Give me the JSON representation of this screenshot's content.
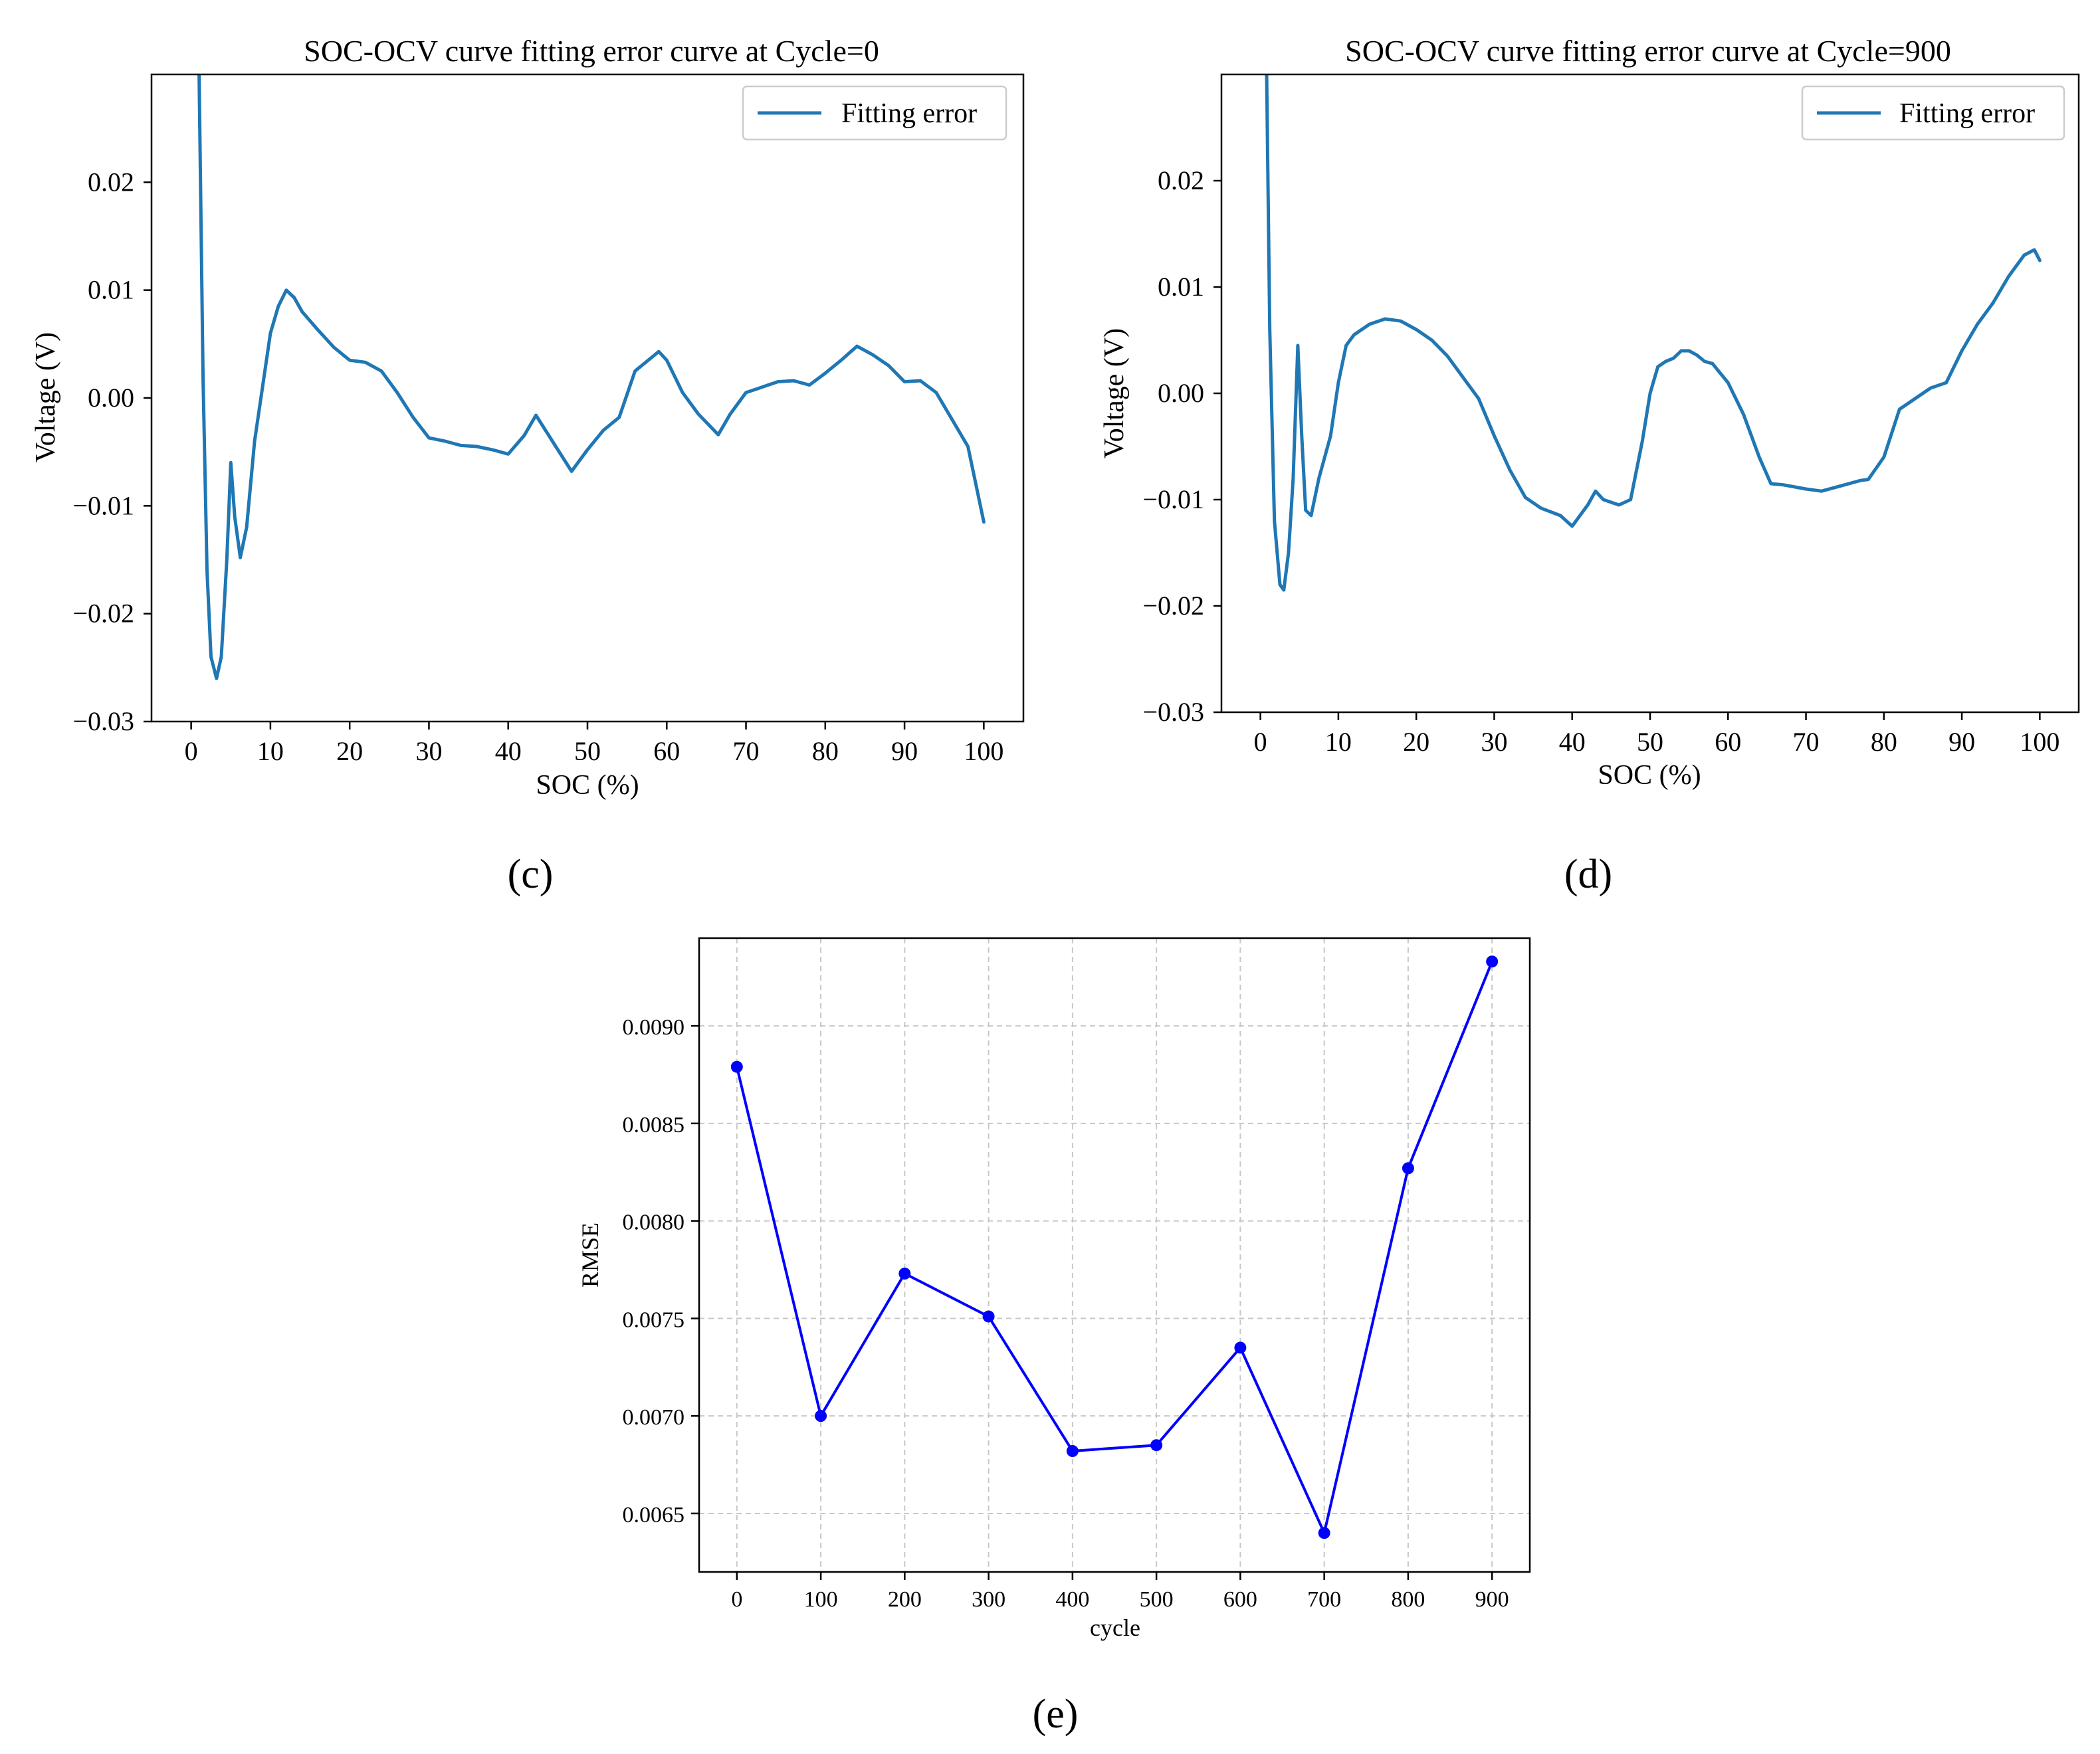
{
  "chart_data": [
    {
      "id": "c",
      "panel_label": "(c)",
      "type": "line",
      "title": "SOC-OCV curve fitting error curve at Cycle=0",
      "xlabel": "SOC (%)",
      "ylabel": "Voltage (V)",
      "xlim": [
        -5,
        105
      ],
      "ylim": [
        -0.03,
        0.03
      ],
      "xticks": [
        "0",
        "10",
        "20",
        "30",
        "40",
        "50",
        "60",
        "70",
        "80",
        "90",
        "100"
      ],
      "yticks": [
        "−0.03",
        "−0.02",
        "−0.01",
        "0.00",
        "0.01",
        "0.02"
      ],
      "legend": "top-right",
      "color": "#1f77b4",
      "series": [
        {
          "name": "Fitting error",
          "x": [
            1,
            1.5,
            2,
            2.5,
            3.2,
            3.8,
            4.5,
            5.0,
            5.5,
            6.2,
            7,
            8,
            9,
            10,
            11,
            12,
            13,
            14,
            16,
            18,
            20,
            22,
            24,
            26,
            28,
            30,
            32,
            34,
            36,
            38,
            40,
            42,
            43.5,
            46,
            48,
            50,
            52,
            54,
            56,
            58,
            59,
            60,
            62,
            64,
            66.5,
            68,
            70,
            72,
            74,
            76,
            78,
            80,
            82,
            84,
            86,
            88,
            90,
            92,
            94,
            96,
            98,
            100
          ],
          "y": [
            0.03,
            0.002,
            -0.016,
            -0.024,
            -0.026,
            -0.024,
            -0.015,
            -0.006,
            -0.011,
            -0.0148,
            -0.012,
            -0.004,
            0.001,
            0.006,
            0.0085,
            0.01,
            0.0093,
            0.008,
            0.0063,
            0.0047,
            0.0035,
            0.0033,
            0.0025,
            0.0005,
            -0.0018,
            -0.0037,
            -0.004,
            -0.0044,
            -0.0045,
            -0.0048,
            -0.0052,
            -0.0035,
            -0.0016,
            -0.0045,
            -0.0068,
            -0.0048,
            -0.003,
            -0.0018,
            0.0025,
            0.0037,
            0.0043,
            0.0035,
            0.0005,
            -0.0015,
            -0.0034,
            -0.0015,
            0.0005,
            0.001,
            0.0015,
            0.0016,
            0.0012,
            0.0023,
            0.0035,
            0.0048,
            0.004,
            0.003,
            0.0015,
            0.0016,
            0.0005,
            -0.002,
            -0.0045,
            -0.0115
          ]
        }
      ]
    },
    {
      "id": "d",
      "panel_label": "(d)",
      "type": "line",
      "title": "SOC-OCV curve fitting error curve at Cycle=900",
      "xlabel": "SOC (%)",
      "ylabel": "Voltage (V)",
      "xlim": [
        -5,
        105
      ],
      "ylim": [
        -0.03,
        0.03
      ],
      "xticks": [
        "0",
        "10",
        "20",
        "30",
        "40",
        "50",
        "60",
        "70",
        "80",
        "90",
        "100"
      ],
      "yticks": [
        "−0.03",
        "−0.02",
        "−0.01",
        "0.00",
        "0.01",
        "0.02"
      ],
      "legend": "top-right",
      "color": "#1f77b4",
      "series": [
        {
          "name": "Fitting error",
          "x": [
            0.8,
            1.2,
            1.8,
            2.5,
            3.0,
            3.6,
            4.2,
            4.8,
            5.3,
            5.8,
            6.5,
            7.5,
            9,
            10,
            11,
            12,
            14,
            16,
            18,
            20,
            22,
            24,
            26,
            28,
            30,
            32,
            34,
            36,
            38.5,
            40,
            42,
            43,
            44,
            46,
            47.5,
            49,
            50,
            51,
            52,
            53,
            54,
            55,
            56,
            57,
            58,
            60,
            62,
            64,
            65.5,
            67,
            70,
            72,
            74,
            77,
            78,
            80,
            82,
            84,
            86,
            88,
            90,
            92,
            94,
            96,
            98,
            99.3,
            100
          ],
          "y": [
            0.03,
            0.006,
            -0.012,
            -0.018,
            -0.0185,
            -0.015,
            -0.008,
            0.0045,
            -0.004,
            -0.011,
            -0.0115,
            -0.008,
            -0.004,
            0.001,
            0.0045,
            0.0055,
            0.0065,
            0.007,
            0.0068,
            0.006,
            0.005,
            0.0035,
            0.0015,
            -0.0005,
            -0.004,
            -0.0072,
            -0.0098,
            -0.0108,
            -0.0115,
            -0.0125,
            -0.0105,
            -0.0092,
            -0.01,
            -0.0105,
            -0.01,
            -0.0045,
            0.0,
            0.0025,
            0.003,
            0.0033,
            0.004,
            0.004,
            0.0036,
            0.003,
            0.0028,
            0.001,
            -0.002,
            -0.006,
            -0.0085,
            -0.0086,
            -0.009,
            -0.0092,
            -0.0088,
            -0.0082,
            -0.0081,
            -0.006,
            -0.0015,
            -0.0005,
            0.0005,
            0.001,
            0.004,
            0.0065,
            0.0085,
            0.011,
            0.013,
            0.0135,
            0.0125
          ]
        }
      ]
    },
    {
      "id": "e",
      "panel_label": "(e)",
      "type": "line",
      "title": "",
      "xlabel": "cycle",
      "ylabel": "RMSE",
      "xlim": [
        -45,
        945
      ],
      "ylim": [
        0.0062,
        0.00945
      ],
      "xticks": [
        "0",
        "100",
        "200",
        "300",
        "400",
        "500",
        "600",
        "700",
        "800",
        "900"
      ],
      "yticks": [
        "0.0065",
        "0.0070",
        "0.0075",
        "0.0080",
        "0.0085",
        "0.0090"
      ],
      "grid": true,
      "color": "#0000ff",
      "markers": true,
      "series": [
        {
          "name": "RMSE",
          "x": [
            0,
            100,
            200,
            300,
            400,
            500,
            600,
            700,
            800,
            900
          ],
          "y": [
            0.00879,
            0.007,
            0.00773,
            0.00751,
            0.00682,
            0.00685,
            0.00735,
            0.0064,
            0.00827,
            0.00933
          ]
        }
      ]
    }
  ]
}
